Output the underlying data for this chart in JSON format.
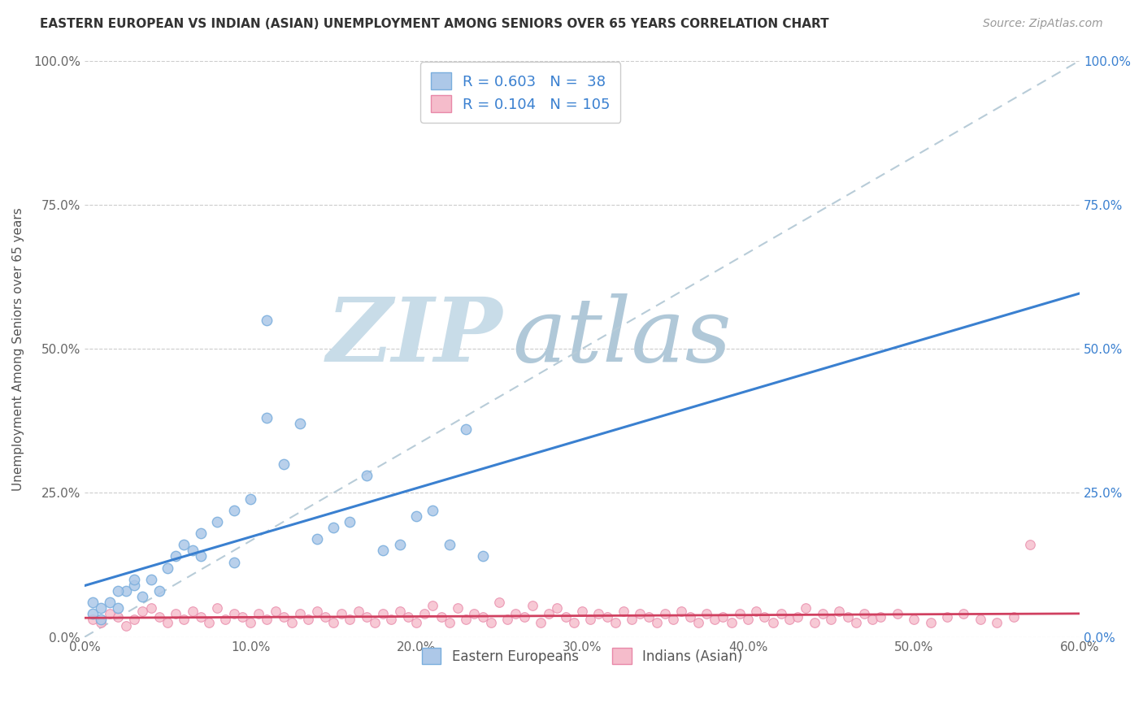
{
  "title": "EASTERN EUROPEAN VS INDIAN (ASIAN) UNEMPLOYMENT AMONG SENIORS OVER 65 YEARS CORRELATION CHART",
  "source": "Source: ZipAtlas.com",
  "ylabel": "Unemployment Among Seniors over 65 years",
  "xlim": [
    0.0,
    0.6
  ],
  "ylim": [
    0.0,
    1.0
  ],
  "xticks": [
    0.0,
    0.1,
    0.2,
    0.3,
    0.4,
    0.5,
    0.6
  ],
  "xticklabels": [
    "0.0%",
    "10.0%",
    "20.0%",
    "30.0%",
    "40.0%",
    "50.0%",
    "60.0%"
  ],
  "yticks": [
    0.0,
    0.25,
    0.5,
    0.75,
    1.0
  ],
  "yticklabels_left": [
    "0.0%",
    "25.0%",
    "50.0%",
    "75.0%",
    "100.0%"
  ],
  "yticklabels_right": [
    "0.0%",
    "25.0%",
    "50.0%",
    "75.0%",
    "100.0%"
  ],
  "blue_R": 0.603,
  "blue_N": 38,
  "pink_R": 0.104,
  "pink_N": 105,
  "blue_color": "#adc8e8",
  "blue_edge": "#7aaedd",
  "pink_color": "#f5bccb",
  "pink_edge": "#e888a8",
  "blue_line_color": "#3a80d0",
  "pink_line_color": "#d04060",
  "ref_line_color": "#b8ccd8",
  "watermark_zip_color": "#c8dce8",
  "watermark_atlas_color": "#b0c8d8",
  "legend_text_color": "#3a80d0",
  "legend_N_color": "#d04060",
  "blue_scatter_x": [
    0.005,
    0.01,
    0.015,
    0.02,
    0.025,
    0.03,
    0.035,
    0.04,
    0.05,
    0.055,
    0.06,
    0.065,
    0.07,
    0.08,
    0.09,
    0.1,
    0.11,
    0.12,
    0.13,
    0.14,
    0.15,
    0.16,
    0.17,
    0.18,
    0.19,
    0.2,
    0.21,
    0.22,
    0.23,
    0.24,
    0.11,
    0.09,
    0.07,
    0.045,
    0.03,
    0.02,
    0.01,
    0.005
  ],
  "blue_scatter_y": [
    0.04,
    0.05,
    0.06,
    0.05,
    0.08,
    0.09,
    0.07,
    0.1,
    0.12,
    0.14,
    0.16,
    0.15,
    0.18,
    0.2,
    0.22,
    0.24,
    0.55,
    0.3,
    0.37,
    0.17,
    0.19,
    0.2,
    0.28,
    0.15,
    0.16,
    0.21,
    0.22,
    0.16,
    0.36,
    0.14,
    0.38,
    0.13,
    0.14,
    0.08,
    0.1,
    0.08,
    0.03,
    0.06
  ],
  "pink_scatter_x": [
    0.005,
    0.01,
    0.015,
    0.02,
    0.025,
    0.03,
    0.035,
    0.04,
    0.045,
    0.05,
    0.055,
    0.06,
    0.065,
    0.07,
    0.075,
    0.08,
    0.085,
    0.09,
    0.095,
    0.1,
    0.105,
    0.11,
    0.115,
    0.12,
    0.125,
    0.13,
    0.135,
    0.14,
    0.145,
    0.15,
    0.155,
    0.16,
    0.165,
    0.17,
    0.175,
    0.18,
    0.185,
    0.19,
    0.195,
    0.2,
    0.205,
    0.21,
    0.215,
    0.22,
    0.225,
    0.23,
    0.235,
    0.24,
    0.245,
    0.25,
    0.255,
    0.26,
    0.265,
    0.27,
    0.275,
    0.28,
    0.285,
    0.29,
    0.295,
    0.3,
    0.305,
    0.31,
    0.315,
    0.32,
    0.325,
    0.33,
    0.335,
    0.34,
    0.345,
    0.35,
    0.355,
    0.36,
    0.365,
    0.37,
    0.375,
    0.38,
    0.385,
    0.39,
    0.395,
    0.4,
    0.405,
    0.41,
    0.415,
    0.42,
    0.425,
    0.43,
    0.435,
    0.44,
    0.445,
    0.45,
    0.455,
    0.46,
    0.465,
    0.47,
    0.475,
    0.48,
    0.49,
    0.5,
    0.51,
    0.52,
    0.53,
    0.54,
    0.55,
    0.56,
    0.57
  ],
  "pink_scatter_y": [
    0.03,
    0.025,
    0.04,
    0.035,
    0.02,
    0.03,
    0.045,
    0.05,
    0.035,
    0.025,
    0.04,
    0.03,
    0.045,
    0.035,
    0.025,
    0.05,
    0.03,
    0.04,
    0.035,
    0.025,
    0.04,
    0.03,
    0.045,
    0.035,
    0.025,
    0.04,
    0.03,
    0.045,
    0.035,
    0.025,
    0.04,
    0.03,
    0.045,
    0.035,
    0.025,
    0.04,
    0.03,
    0.045,
    0.035,
    0.025,
    0.04,
    0.055,
    0.035,
    0.025,
    0.05,
    0.03,
    0.04,
    0.035,
    0.025,
    0.06,
    0.03,
    0.04,
    0.035,
    0.055,
    0.025,
    0.04,
    0.05,
    0.035,
    0.025,
    0.045,
    0.03,
    0.04,
    0.035,
    0.025,
    0.045,
    0.03,
    0.04,
    0.035,
    0.025,
    0.04,
    0.03,
    0.045,
    0.035,
    0.025,
    0.04,
    0.03,
    0.035,
    0.025,
    0.04,
    0.03,
    0.045,
    0.035,
    0.025,
    0.04,
    0.03,
    0.035,
    0.05,
    0.025,
    0.04,
    0.03,
    0.045,
    0.035,
    0.025,
    0.04,
    0.03,
    0.035,
    0.04,
    0.03,
    0.025,
    0.035,
    0.04,
    0.03,
    0.025,
    0.035,
    0.16
  ]
}
